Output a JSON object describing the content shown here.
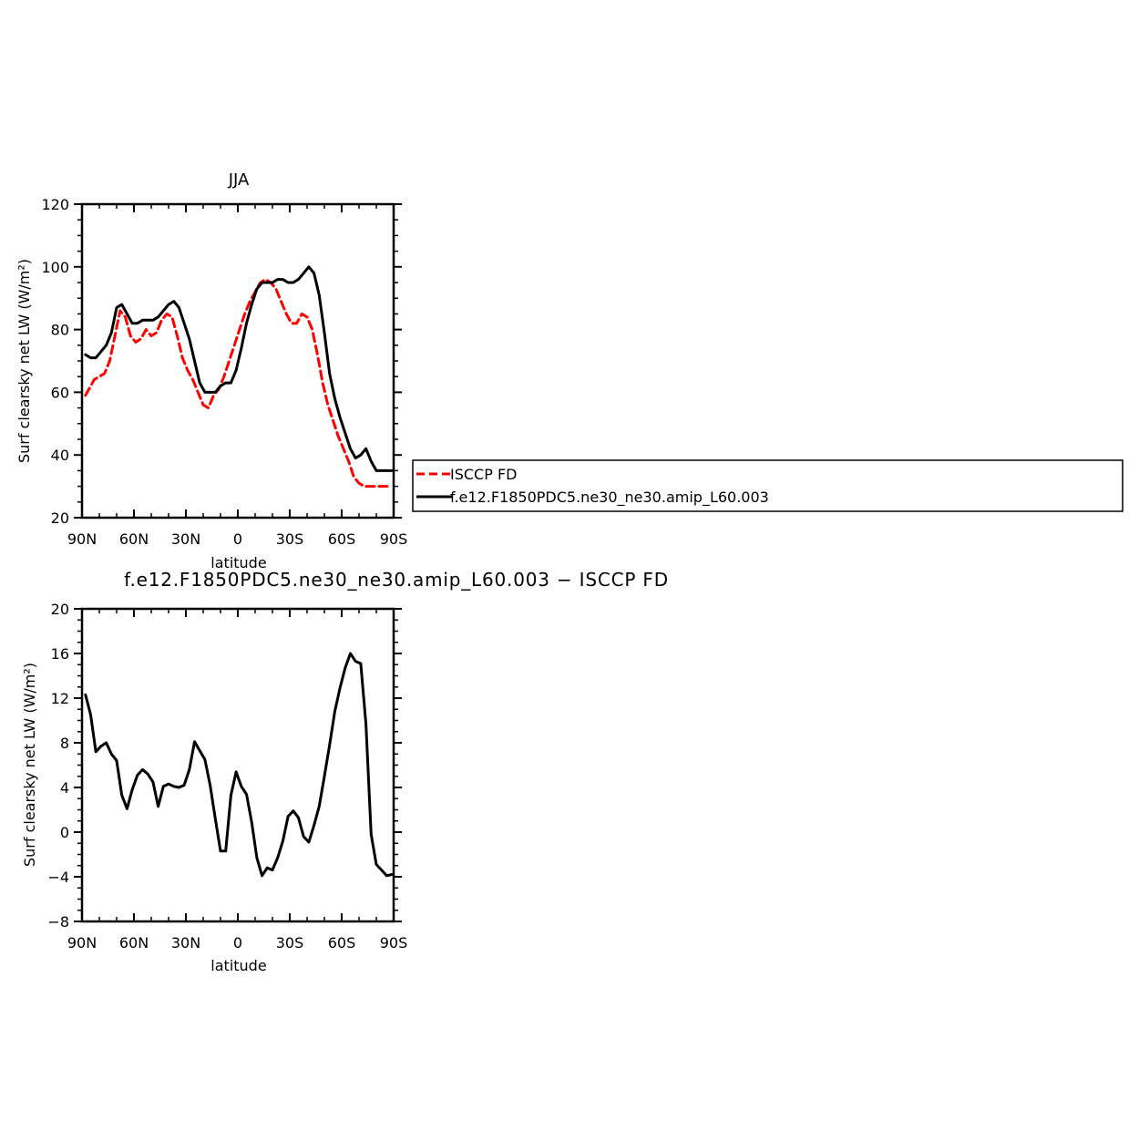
{
  "colors": {
    "model": "#000000",
    "obs": "#ff0000",
    "background": "#ffffff"
  },
  "legend": {
    "obs_label": "ISCCP FD",
    "model_label": "f.e12.F1850PDC5.ne30_ne30.amip_L60.003"
  },
  "chart_data": [
    {
      "type": "line",
      "title": "JJA",
      "xlabel": "latitude",
      "ylabel": "Surf clearsky net LW (W/m²)",
      "xlim": [
        90,
        -90
      ],
      "ylim": [
        20,
        120
      ],
      "x_tick_values": [
        90,
        60,
        30,
        0,
        -30,
        -60,
        -90
      ],
      "x_tick_labels": [
        "90N",
        "60N",
        "30N",
        "0",
        "30S",
        "60S",
        "90S"
      ],
      "y_tick_values": [
        20,
        40,
        60,
        80,
        100,
        120
      ],
      "y_tick_labels": [
        "20",
        "40",
        "60",
        "80",
        "100",
        "120"
      ],
      "series": [
        {
          "name": "ISCCP FD",
          "style": "dashed",
          "x": [
            88,
            86,
            83,
            80,
            77,
            74,
            71,
            68,
            65,
            62,
            59,
            56,
            53,
            50,
            47,
            44,
            41,
            38,
            35,
            32,
            29,
            26,
            23,
            20,
            17,
            14,
            11,
            8,
            5,
            2,
            -1,
            -4,
            -7,
            -10,
            -13,
            -16,
            -19,
            -22,
            -25,
            -28,
            -31,
            -34,
            -37,
            -40,
            -43,
            -46,
            -49,
            -52,
            -55,
            -58,
            -61,
            -64,
            -67,
            -70,
            -73,
            -76,
            -79,
            -82,
            -85,
            -88
          ],
          "values": [
            59,
            61,
            64,
            65,
            66,
            70,
            78,
            86,
            84,
            78,
            76,
            77,
            80,
            78,
            79,
            83,
            85,
            84,
            78,
            71,
            67,
            64,
            60,
            56,
            55,
            59,
            61,
            65,
            70,
            75,
            80,
            85,
            89,
            92,
            95,
            96,
            95,
            93,
            89,
            85,
            82,
            82,
            85,
            84,
            80,
            72,
            63,
            56,
            51,
            46,
            42,
            38,
            33,
            31,
            30,
            30,
            30,
            30,
            30,
            30
          ]
        },
        {
          "name": "f.e12.F1850PDC5.ne30_ne30.amip_L60.003",
          "style": "solid",
          "x": [
            88,
            85,
            82,
            79,
            76,
            73,
            70,
            67,
            64,
            61,
            58,
            55,
            52,
            49,
            46,
            43,
            40,
            37,
            34,
            31,
            28,
            25,
            22,
            19,
            16,
            13,
            10,
            7,
            4,
            1,
            -2,
            -5,
            -8,
            -11,
            -14,
            -17,
            -20,
            -23,
            -26,
            -29,
            -32,
            -35,
            -38,
            -41,
            -44,
            -47,
            -50,
            -53,
            -56,
            -59,
            -62,
            -65,
            -68,
            -71,
            -74,
            -77,
            -80,
            -83,
            -86,
            -89
          ],
          "values": [
            72,
            71,
            71,
            73,
            75,
            79,
            87,
            88,
            85,
            82,
            82,
            83,
            83,
            83,
            84,
            86,
            88,
            89,
            87,
            82,
            77,
            70,
            63,
            60,
            60,
            60,
            62,
            63,
            63,
            67,
            74,
            82,
            88,
            93,
            95,
            95,
            95,
            96,
            96,
            95,
            95,
            96,
            98,
            100,
            98,
            91,
            79,
            66,
            58,
            52,
            47,
            42,
            39,
            40,
            42,
            38,
            35,
            35,
            35,
            35
          ]
        }
      ]
    },
    {
      "type": "line",
      "title": "f.e12.F1850PDC5.ne30_ne30.amip_L60.003 − ISCCP FD",
      "xlabel": "latitude",
      "ylabel": "Surf clearsky net LW (W/m²)",
      "xlim": [
        90,
        -90
      ],
      "ylim": [
        -8,
        20
      ],
      "x_tick_values": [
        90,
        60,
        30,
        0,
        -30,
        -60,
        -90
      ],
      "x_tick_labels": [
        "90N",
        "60N",
        "30N",
        "0",
        "30S",
        "60S",
        "90S"
      ],
      "y_tick_values": [
        -8,
        -4,
        0,
        4,
        8,
        12,
        16,
        20
      ],
      "y_tick_labels": [
        "−8",
        "−4",
        "0",
        "4",
        "8",
        "12",
        "16",
        "20"
      ],
      "series": [
        {
          "style": "solid",
          "x": [
            88,
            85,
            82,
            79,
            76,
            73,
            70,
            67,
            64,
            61,
            58,
            55,
            52,
            49,
            46,
            43,
            40,
            37,
            34,
            31,
            28,
            25,
            22,
            19,
            16,
            13,
            10,
            7,
            4,
            1,
            -2,
            -5,
            -8,
            -11,
            -14,
            -17,
            -20,
            -23,
            -26,
            -29,
            -32,
            -35,
            -38,
            -41,
            -44,
            -47,
            -50,
            -53,
            -56,
            -59,
            -62,
            -65,
            -68,
            -71,
            -74,
            -77,
            -80,
            -83,
            -86,
            -89
          ],
          "values": [
            12.3,
            10.5,
            7.2,
            7.7,
            8.0,
            7.0,
            6.4,
            3.3,
            2.1,
            3.8,
            5.1,
            5.6,
            5.2,
            4.5,
            2.3,
            4.1,
            4.3,
            4.1,
            4.0,
            4.2,
            5.6,
            8.1,
            7.3,
            6.5,
            4.2,
            1.2,
            -1.7,
            -1.7,
            3.3,
            5.4,
            4.1,
            3.4,
            0.9,
            -2.3,
            -3.9,
            -3.2,
            -3.4,
            -2.3,
            -0.8,
            1.4,
            1.9,
            1.3,
            -0.4,
            -0.9,
            0.6,
            2.3,
            5.0,
            7.8,
            10.8,
            12.9,
            14.7,
            16.0,
            15.3,
            15.1,
            9.7,
            -0.2,
            -2.9,
            -3.4,
            -3.9,
            -3.8
          ]
        }
      ]
    }
  ]
}
